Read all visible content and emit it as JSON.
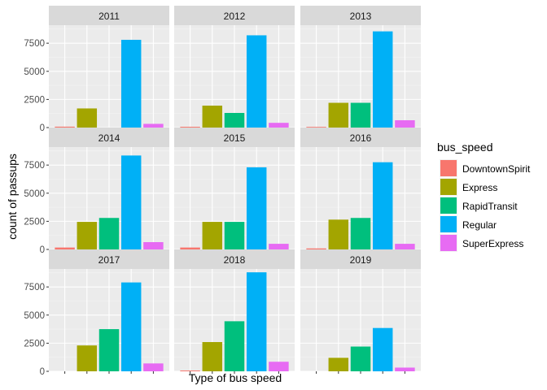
{
  "chart_data": {
    "type": "bar",
    "facet_by": "year",
    "xlabel": "Type of bus speed",
    "ylabel": "count of passups",
    "ylim": [
      0,
      9100
    ],
    "yticks": [
      0,
      2500,
      5000,
      7500
    ],
    "grid": true,
    "legend": {
      "title": "bus_speed",
      "position": "right",
      "entries": [
        "DowntownSpirit",
        "Express",
        "RapidTransit",
        "Regular",
        "SuperExpress"
      ]
    },
    "categories": [
      "DowntownSpirit",
      "Express",
      "RapidTransit",
      "Regular",
      "SuperExpress"
    ],
    "colors": {
      "DowntownSpirit": "#F8766D",
      "Express": "#A3A500",
      "RapidTransit": "#00BF7D",
      "Regular": "#00B0F6",
      "SuperExpress": "#E76BF3"
    },
    "panels": [
      {
        "year": "2011",
        "values": {
          "DowntownSpirit": 80,
          "Express": 1700,
          "Regular": 7800,
          "SuperExpress": 330
        }
      },
      {
        "year": "2012",
        "values": {
          "DowntownSpirit": 70,
          "Express": 1950,
          "RapidTransit": 1300,
          "Regular": 8200,
          "SuperExpress": 420
        }
      },
      {
        "year": "2013",
        "values": {
          "DowntownSpirit": 60,
          "Express": 2200,
          "RapidTransit": 2200,
          "Regular": 8550,
          "SuperExpress": 650
        }
      },
      {
        "year": "2014",
        "values": {
          "DowntownSpirit": 170,
          "Express": 2450,
          "RapidTransit": 2800,
          "Regular": 8350,
          "SuperExpress": 650
        }
      },
      {
        "year": "2015",
        "values": {
          "DowntownSpirit": 170,
          "Express": 2450,
          "RapidTransit": 2450,
          "Regular": 7300,
          "SuperExpress": 500
        }
      },
      {
        "year": "2016",
        "values": {
          "DowntownSpirit": 90,
          "Express": 2650,
          "RapidTransit": 2800,
          "Regular": 7750,
          "SuperExpress": 500
        }
      },
      {
        "year": "2017",
        "values": {
          "Express": 2300,
          "RapidTransit": 3750,
          "Regular": 7900,
          "SuperExpress": 700
        }
      },
      {
        "year": "2018",
        "values": {
          "DowntownSpirit": 70,
          "Express": 2600,
          "RapidTransit": 4450,
          "Regular": 8800,
          "SuperExpress": 850
        }
      },
      {
        "year": "2019",
        "values": {
          "Express": 1200,
          "RapidTransit": 2200,
          "Regular": 3850,
          "SuperExpress": 330
        }
      }
    ]
  }
}
